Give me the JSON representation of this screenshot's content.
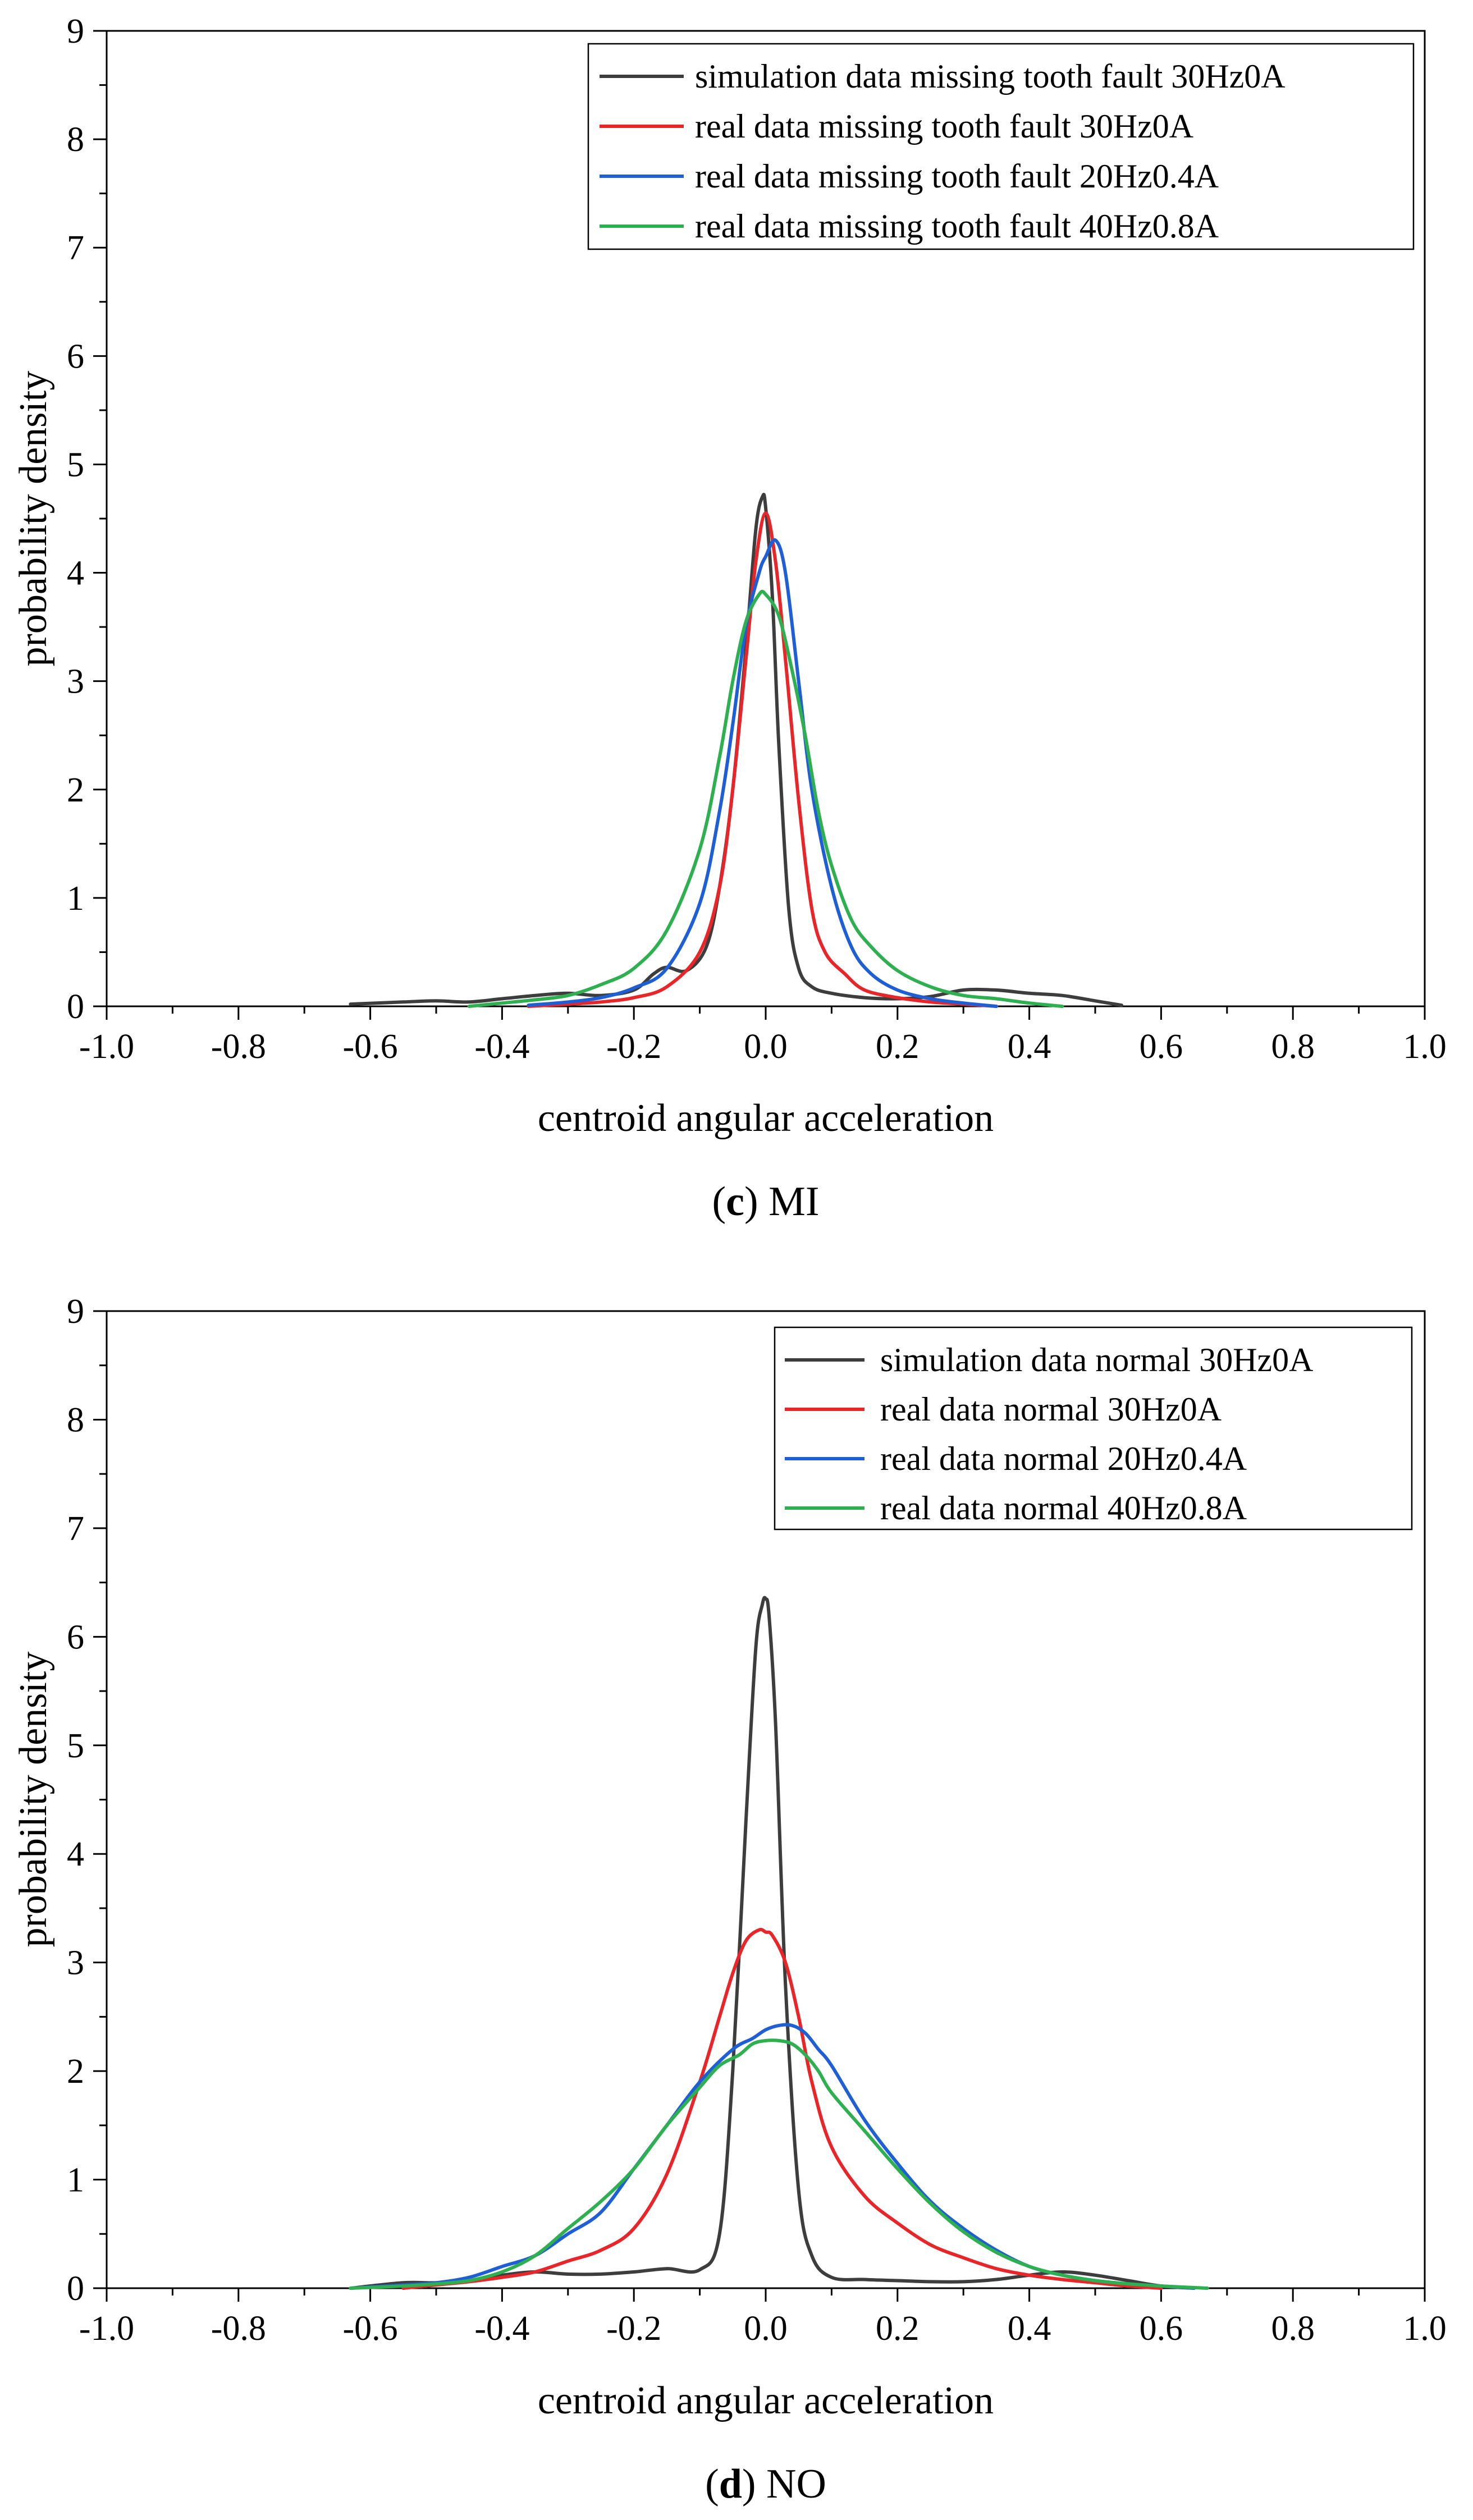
{
  "chart_data": [
    {
      "type": "line",
      "caption_letter": "c",
      "caption_paren_open": "(",
      "caption_paren_close": ")",
      "caption_text": "MI",
      "title": "",
      "xlabel": "centroid angular acceleration",
      "ylabel": "probability density",
      "xlim": [
        -1.0,
        1.0
      ],
      "ylim": [
        0,
        9
      ],
      "xticks": [
        -1.0,
        -0.8,
        -0.6,
        -0.4,
        -0.2,
        0.0,
        0.2,
        0.4,
        0.6,
        0.8,
        1.0
      ],
      "xtick_labels": [
        "-1.0",
        "-0.8",
        "-0.6",
        "-0.4",
        "-0.2",
        "0.0",
        "0.2",
        "0.4",
        "0.6",
        "0.8",
        "1.0"
      ],
      "yticks": [
        0,
        1,
        2,
        3,
        4,
        5,
        6,
        7,
        8,
        9
      ],
      "ytick_labels": [
        "0",
        "1",
        "2",
        "3",
        "4",
        "5",
        "6",
        "7",
        "8",
        "9"
      ],
      "legend_position": "top-right",
      "grid": false,
      "series": [
        {
          "name": "simulation data missing tooth fault 30Hz0A",
          "color": "#3d3d3d",
          "x": [
            -0.63,
            -0.55,
            -0.5,
            -0.45,
            -0.4,
            -0.35,
            -0.3,
            -0.25,
            -0.2,
            -0.17,
            -0.15,
            -0.12,
            -0.09,
            -0.07,
            -0.05,
            -0.03,
            -0.015,
            -0.005,
            0.0,
            0.01,
            0.02,
            0.035,
            0.05,
            0.07,
            0.1,
            0.15,
            0.2,
            0.25,
            0.3,
            0.35,
            0.4,
            0.45,
            0.5,
            0.54
          ],
          "values": [
            0.02,
            0.04,
            0.05,
            0.04,
            0.07,
            0.1,
            0.12,
            0.1,
            0.15,
            0.3,
            0.36,
            0.33,
            0.55,
            1.1,
            2.0,
            3.3,
            4.4,
            4.7,
            4.6,
            3.8,
            2.4,
            0.9,
            0.35,
            0.18,
            0.12,
            0.08,
            0.07,
            0.09,
            0.15,
            0.15,
            0.12,
            0.1,
            0.05,
            0.01
          ]
        },
        {
          "name": "real data missing tooth fault 30Hz0A",
          "color": "#e8262a",
          "x": [
            -0.36,
            -0.3,
            -0.25,
            -0.2,
            -0.15,
            -0.1,
            -0.07,
            -0.05,
            -0.03,
            -0.015,
            0.0,
            0.015,
            0.03,
            0.05,
            0.07,
            0.09,
            0.12,
            0.15,
            0.2,
            0.25,
            0.3,
            0.35
          ],
          "values": [
            0.0,
            0.02,
            0.04,
            0.08,
            0.18,
            0.5,
            1.1,
            2.0,
            3.2,
            4.1,
            4.55,
            4.1,
            3.2,
            1.9,
            0.9,
            0.5,
            0.3,
            0.15,
            0.08,
            0.04,
            0.02,
            0.0
          ]
        },
        {
          "name": "real data missing tooth fault 20Hz0.4A",
          "color": "#1f5fd6",
          "x": [
            -0.36,
            -0.3,
            -0.25,
            -0.2,
            -0.15,
            -0.1,
            -0.07,
            -0.05,
            -0.03,
            -0.01,
            0.0,
            0.015,
            0.03,
            0.05,
            0.07,
            0.1,
            0.13,
            0.16,
            0.2,
            0.25,
            0.3,
            0.35
          ],
          "values": [
            0.01,
            0.04,
            0.08,
            0.17,
            0.35,
            0.95,
            1.8,
            2.6,
            3.5,
            4.0,
            4.15,
            4.3,
            4.0,
            3.0,
            2.0,
            1.1,
            0.55,
            0.3,
            0.15,
            0.07,
            0.03,
            0.0
          ]
        },
        {
          "name": "real data missing tooth fault 40Hz0.8A",
          "color": "#2eb050",
          "x": [
            -0.45,
            -0.4,
            -0.35,
            -0.3,
            -0.25,
            -0.2,
            -0.15,
            -0.1,
            -0.07,
            -0.05,
            -0.03,
            -0.01,
            0.0,
            0.02,
            0.04,
            0.06,
            0.08,
            0.1,
            0.13,
            0.16,
            0.2,
            0.25,
            0.3,
            0.35,
            0.4,
            0.45
          ],
          "values": [
            0.0,
            0.03,
            0.06,
            0.1,
            0.2,
            0.35,
            0.7,
            1.45,
            2.3,
            3.0,
            3.55,
            3.8,
            3.8,
            3.6,
            3.1,
            2.5,
            1.8,
            1.3,
            0.8,
            0.55,
            0.33,
            0.18,
            0.1,
            0.07,
            0.03,
            0.0
          ]
        }
      ]
    },
    {
      "type": "line",
      "caption_letter": "d",
      "caption_paren_open": "(",
      "caption_paren_close": ")",
      "caption_text": "NO",
      "title": "",
      "xlabel": "centroid angular acceleration",
      "ylabel": "probability density",
      "xlim": [
        -1.0,
        1.0
      ],
      "ylim": [
        0,
        9
      ],
      "xticks": [
        -1.0,
        -0.8,
        -0.6,
        -0.4,
        -0.2,
        0.0,
        0.2,
        0.4,
        0.6,
        0.8,
        1.0
      ],
      "xtick_labels": [
        "-1.0",
        "-0.8",
        "-0.6",
        "-0.4",
        "-0.2",
        "0.0",
        "0.2",
        "0.4",
        "0.6",
        "0.8",
        "1.0"
      ],
      "yticks": [
        0,
        1,
        2,
        3,
        4,
        5,
        6,
        7,
        8,
        9
      ],
      "ytick_labels": [
        "0",
        "1",
        "2",
        "3",
        "4",
        "5",
        "6",
        "7",
        "8",
        "9"
      ],
      "legend_position": "top-right",
      "grid": false,
      "series": [
        {
          "name": "simulation data normal 30Hz0A",
          "color": "#3d3d3d",
          "x": [
            -0.63,
            -0.55,
            -0.5,
            -0.45,
            -0.4,
            -0.35,
            -0.3,
            -0.25,
            -0.2,
            -0.15,
            -0.1,
            -0.07,
            -0.05,
            -0.03,
            -0.015,
            -0.005,
            0.0,
            0.005,
            0.015,
            0.03,
            0.05,
            0.07,
            0.1,
            0.15,
            0.2,
            0.25,
            0.3,
            0.35,
            0.4,
            0.45,
            0.5,
            0.55,
            0.6,
            0.65
          ],
          "values": [
            0.0,
            0.05,
            0.05,
            0.07,
            0.12,
            0.15,
            0.13,
            0.13,
            0.15,
            0.18,
            0.17,
            0.5,
            2.0,
            4.3,
            5.9,
            6.3,
            6.35,
            6.2,
            5.2,
            2.8,
            0.9,
            0.3,
            0.1,
            0.08,
            0.07,
            0.06,
            0.06,
            0.08,
            0.12,
            0.15,
            0.12,
            0.07,
            0.02,
            0.0
          ]
        },
        {
          "name": "real data normal 30Hz0A",
          "color": "#e8262a",
          "x": [
            -0.55,
            -0.5,
            -0.45,
            -0.4,
            -0.35,
            -0.3,
            -0.25,
            -0.2,
            -0.15,
            -0.1,
            -0.07,
            -0.05,
            -0.03,
            -0.01,
            0.0,
            0.01,
            0.03,
            0.05,
            0.07,
            0.1,
            0.15,
            0.2,
            0.25,
            0.3,
            0.35,
            0.4,
            0.45,
            0.5,
            0.55,
            0.6
          ],
          "values": [
            0.0,
            0.03,
            0.06,
            0.1,
            0.15,
            0.25,
            0.35,
            0.55,
            1.05,
            1.9,
            2.5,
            2.9,
            3.2,
            3.3,
            3.28,
            3.25,
            3.0,
            2.5,
            1.9,
            1.3,
            0.85,
            0.6,
            0.4,
            0.28,
            0.18,
            0.12,
            0.08,
            0.05,
            0.02,
            0.0
          ]
        },
        {
          "name": "real data normal 20Hz0.4A",
          "color": "#1f5fd6",
          "x": [
            -0.63,
            -0.55,
            -0.5,
            -0.45,
            -0.4,
            -0.35,
            -0.3,
            -0.25,
            -0.2,
            -0.15,
            -0.1,
            -0.05,
            -0.02,
            0.0,
            0.02,
            0.04,
            0.06,
            0.08,
            0.1,
            0.15,
            0.2,
            0.25,
            0.3,
            0.35,
            0.4,
            0.45,
            0.5,
            0.55,
            0.6,
            0.65
          ],
          "values": [
            0.0,
            0.03,
            0.05,
            0.1,
            0.2,
            0.3,
            0.5,
            0.7,
            1.1,
            1.5,
            1.9,
            2.2,
            2.3,
            2.38,
            2.42,
            2.42,
            2.35,
            2.2,
            2.05,
            1.55,
            1.15,
            0.8,
            0.55,
            0.35,
            0.2,
            0.12,
            0.07,
            0.04,
            0.02,
            0.0
          ]
        },
        {
          "name": "real data normal 40Hz0.8A",
          "color": "#2eb050",
          "x": [
            -0.63,
            -0.55,
            -0.5,
            -0.45,
            -0.4,
            -0.35,
            -0.3,
            -0.25,
            -0.2,
            -0.15,
            -0.1,
            -0.07,
            -0.04,
            -0.02,
            0.0,
            0.02,
            0.04,
            0.06,
            0.08,
            0.1,
            0.15,
            0.2,
            0.25,
            0.3,
            0.35,
            0.4,
            0.45,
            0.5,
            0.55,
            0.6,
            0.67
          ],
          "values": [
            0.0,
            0.02,
            0.04,
            0.07,
            0.15,
            0.3,
            0.55,
            0.8,
            1.1,
            1.5,
            1.85,
            2.05,
            2.15,
            2.25,
            2.28,
            2.28,
            2.25,
            2.15,
            2.0,
            1.8,
            1.45,
            1.1,
            0.78,
            0.52,
            0.33,
            0.2,
            0.12,
            0.07,
            0.04,
            0.02,
            0.0
          ]
        }
      ]
    }
  ]
}
